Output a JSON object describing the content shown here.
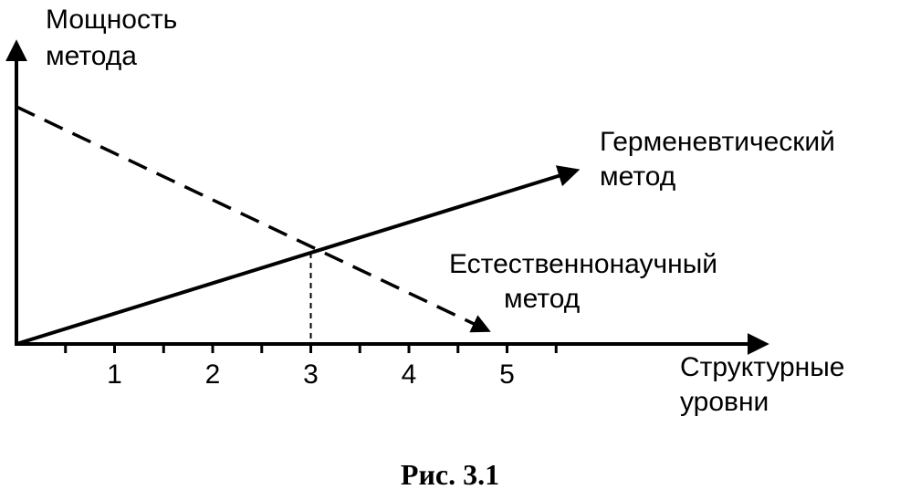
{
  "chart_data": {
    "type": "line",
    "ylabel": [
      "Мощность",
      "метода"
    ],
    "xlabel": [
      "Структурные",
      "уровни"
    ],
    "x_ticks": [
      "1",
      "2",
      "3",
      "4",
      "5"
    ],
    "xlim": [
      0,
      7.5
    ],
    "ylim": [
      0,
      5.2
    ],
    "grid": false,
    "series": [
      {
        "name": [
          "Герменевтический",
          "метод"
        ],
        "style": "solid",
        "points": [
          {
            "x": 0,
            "y": 0
          },
          {
            "x": 5.7,
            "y": 3.8
          }
        ]
      },
      {
        "name": [
          "Естественнонаучный",
          "метод"
        ],
        "style": "dashed",
        "points": [
          {
            "x": 0,
            "y": 5.2
          },
          {
            "x": 4.8,
            "y": 0.3
          }
        ]
      }
    ],
    "annotations": [
      {
        "type": "intersection-dropline",
        "x": 3,
        "y": 2.0,
        "style": "dashed"
      }
    ]
  },
  "caption": "Рис. 3.1",
  "colors": {
    "ink": "#000000",
    "background": "#ffffff"
  }
}
